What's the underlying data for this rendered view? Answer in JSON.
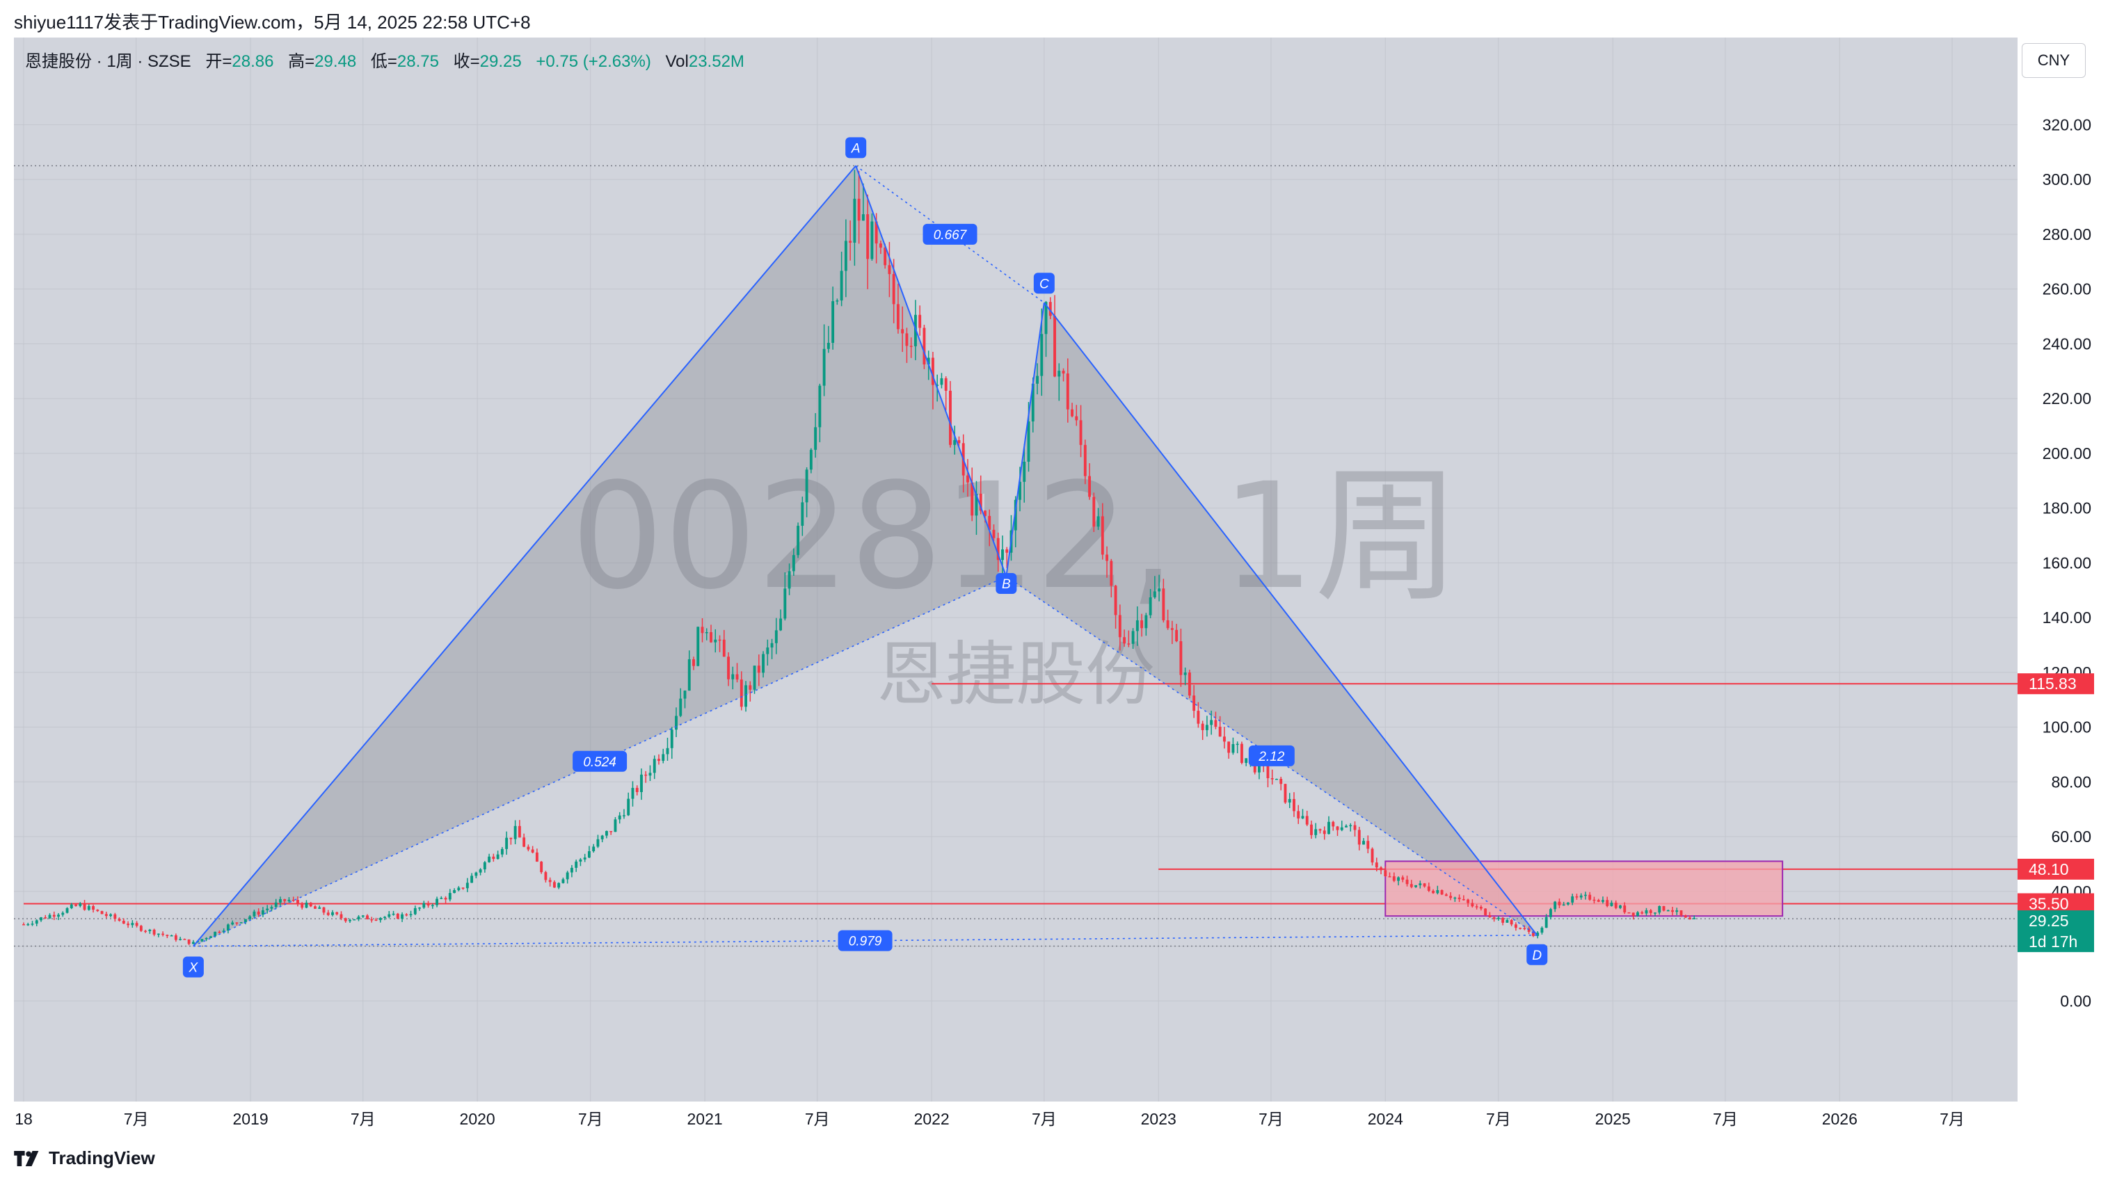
{
  "caption": "shiyue1117发表于TradingView.com，5月 14, 2025 22:58 UTC+8",
  "symbol": {
    "name": "恩捷股份 · 1周 · SZSE",
    "open_label": "开=",
    "open": "28.86",
    "high_label": "高=",
    "high": "29.48",
    "low_label": "低=",
    "low": "28.75",
    "close_label": "收=",
    "close": "29.25",
    "change": "+0.75 (+2.63%)",
    "vol_label": "Vol",
    "vol": "23.52M"
  },
  "currency": "CNY",
  "watermark": {
    "code": "002812, 1周",
    "name": "恩捷股份"
  },
  "footer": {
    "brand": "TradingView"
  },
  "colors": {
    "up": "#089981",
    "down": "#f23645",
    "pattern": "#2962ff",
    "zone_fill": "#f4a4ad",
    "zone_border": "#9c27b0",
    "background": "#d1d4dc"
  },
  "chart_data": {
    "type": "candlestick",
    "interval": "1周",
    "ylim": [
      -20,
      330
    ],
    "y_ticks": [
      0,
      20,
      40,
      60,
      80,
      100,
      120,
      140,
      160,
      180,
      200,
      220,
      240,
      260,
      280,
      300,
      320
    ],
    "x_ticks": [
      {
        "label": "18",
        "date": "2018-01"
      },
      {
        "label": "7月",
        "date": "2018-07"
      },
      {
        "label": "2019",
        "date": "2019-01"
      },
      {
        "label": "7月",
        "date": "2019-07"
      },
      {
        "label": "2020",
        "date": "2020-01"
      },
      {
        "label": "7月",
        "date": "2020-07"
      },
      {
        "label": "2021",
        "date": "2021-01"
      },
      {
        "label": "7月",
        "date": "2021-07"
      },
      {
        "label": "2022",
        "date": "2022-01"
      },
      {
        "label": "7月",
        "date": "2022-07"
      },
      {
        "label": "2023",
        "date": "2023-01"
      },
      {
        "label": "7月",
        "date": "2023-07"
      },
      {
        "label": "2024",
        "date": "2024-01"
      },
      {
        "label": "7月",
        "date": "2024-07"
      },
      {
        "label": "2025",
        "date": "2025-01"
      },
      {
        "label": "7月",
        "date": "2025-07"
      },
      {
        "label": "2026",
        "date": "2026-01"
      },
      {
        "label": "7月",
        "date": "2026-07"
      }
    ],
    "price_path": [
      [
        "2018-01",
        28
      ],
      [
        "2018-04",
        35
      ],
      [
        "2018-07",
        27
      ],
      [
        "2018-10",
        21
      ],
      [
        "2018-12",
        28
      ],
      [
        "2019-03",
        37
      ],
      [
        "2019-06",
        30
      ],
      [
        "2019-09",
        31
      ],
      [
        "2019-12",
        40
      ],
      [
        "2020-03",
        62
      ],
      [
        "2020-05",
        42
      ],
      [
        "2020-08",
        62
      ],
      [
        "2020-11",
        95
      ],
      [
        "2021-01",
        140
      ],
      [
        "2021-03",
        110
      ],
      [
        "2021-05",
        135
      ],
      [
        "2021-07",
        220
      ],
      [
        "2021-09",
        290
      ],
      [
        "2021-11",
        255
      ],
      [
        "2022-01",
        235
      ],
      [
        "2022-03",
        185
      ],
      [
        "2022-05",
        160
      ],
      [
        "2022-07",
        250
      ],
      [
        "2022-09",
        200
      ],
      [
        "2022-11",
        130
      ],
      [
        "2023-01",
        150
      ],
      [
        "2023-03",
        105
      ],
      [
        "2023-05",
        92
      ],
      [
        "2023-07",
        82
      ],
      [
        "2023-09",
        62
      ],
      [
        "2023-11",
        65
      ],
      [
        "2024-01",
        45
      ],
      [
        "2024-04",
        40
      ],
      [
        "2024-07",
        30
      ],
      [
        "2024-09",
        24
      ],
      [
        "2024-10",
        36
      ],
      [
        "2024-12",
        38
      ],
      [
        "2025-02",
        32
      ],
      [
        "2025-04",
        34
      ],
      [
        "2025-05",
        29.25
      ]
    ],
    "harmonic_pattern": {
      "points": [
        {
          "label": "X",
          "date": "2018-10",
          "price": 20
        },
        {
          "label": "A",
          "date": "2021-09",
          "price": 305
        },
        {
          "label": "B",
          "date": "2022-05",
          "price": 155
        },
        {
          "label": "C",
          "date": "2022-07",
          "price": 255
        },
        {
          "label": "D",
          "date": "2024-09",
          "price": 24
        }
      ],
      "ratios": [
        {
          "label": "0.524",
          "between": "XB"
        },
        {
          "label": "0.667",
          "between": "AC"
        },
        {
          "label": "2.12",
          "between": "BD"
        },
        {
          "label": "0.979",
          "between": "XD"
        }
      ]
    },
    "horizontal_lines": [
      {
        "price": 115.83,
        "label": "115.83",
        "start": "2022-01"
      },
      {
        "price": 48.1,
        "label": "48.10",
        "start": "2023-01"
      },
      {
        "price": 35.5,
        "label": "35.50",
        "start": "2018-01"
      }
    ],
    "rectangle_zone": {
      "start": "2024-01",
      "end": "2025-10",
      "top": 51,
      "bottom": 31
    },
    "dotted_lines": [
      305,
      30,
      20
    ],
    "last_price": {
      "price": 29.25,
      "label": "29.25",
      "countdown": "1d 17h"
    }
  }
}
